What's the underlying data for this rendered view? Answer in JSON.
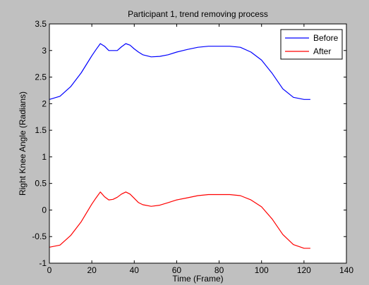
{
  "chart_data": {
    "type": "line",
    "title": "Participant 1, trend removing process",
    "xlabel": "Time (Frame)",
    "ylabel": "Right Knee Angle (Radians)",
    "xlim": [
      0,
      140
    ],
    "ylim": [
      -1,
      3.5
    ],
    "xticks": [
      "0",
      "20",
      "40",
      "60",
      "80",
      "100",
      "120",
      "140"
    ],
    "yticks": [
      "-1",
      "-0.5",
      "0",
      "0.5",
      "1",
      "1.5",
      "2",
      "2.5",
      "3",
      "3.5"
    ],
    "grid": false,
    "legend_position": "top-right",
    "series": [
      {
        "name": "Before",
        "color": "#0000ff",
        "x": [
          0,
          5,
          10,
          15,
          20,
          22,
          24,
          26,
          28,
          30,
          32,
          34,
          36,
          38,
          40,
          42,
          44,
          48,
          52,
          56,
          60,
          65,
          70,
          75,
          80,
          85,
          90,
          95,
          100,
          105,
          110,
          115,
          120,
          123
        ],
        "y": [
          2.08,
          2.14,
          2.32,
          2.58,
          2.9,
          3.02,
          3.13,
          3.08,
          3.0,
          3.0,
          3.0,
          3.07,
          3.13,
          3.1,
          3.03,
          2.97,
          2.92,
          2.88,
          2.89,
          2.92,
          2.97,
          3.02,
          3.06,
          3.08,
          3.08,
          3.08,
          3.06,
          2.97,
          2.82,
          2.57,
          2.28,
          2.12,
          2.08,
          2.08
        ]
      },
      {
        "name": "After",
        "color": "#ff0000",
        "x": [
          0,
          5,
          10,
          15,
          20,
          22,
          24,
          26,
          28,
          30,
          32,
          34,
          36,
          38,
          40,
          42,
          44,
          48,
          52,
          56,
          60,
          65,
          70,
          75,
          80,
          85,
          90,
          95,
          100,
          105,
          110,
          115,
          120,
          123
        ],
        "y": [
          -0.7,
          -0.66,
          -0.48,
          -0.22,
          0.11,
          0.23,
          0.34,
          0.25,
          0.19,
          0.2,
          0.24,
          0.3,
          0.34,
          0.3,
          0.22,
          0.14,
          0.1,
          0.07,
          0.09,
          0.14,
          0.19,
          0.23,
          0.27,
          0.29,
          0.29,
          0.29,
          0.27,
          0.19,
          0.06,
          -0.17,
          -0.46,
          -0.65,
          -0.72,
          -0.72
        ]
      }
    ]
  }
}
